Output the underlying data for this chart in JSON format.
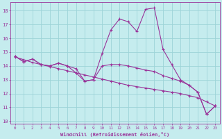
{
  "xlabel": "Windchill (Refroidissement éolien,°C)",
  "background_color": "#c5ecee",
  "grid_color": "#9dd4d8",
  "line_color": "#993399",
  "xlim": [
    -0.5,
    23.5
  ],
  "ylim": [
    9.8,
    18.6
  ],
  "yticks": [
    10,
    11,
    12,
    13,
    14,
    15,
    16,
    17,
    18
  ],
  "xticks": [
    0,
    1,
    2,
    3,
    4,
    5,
    6,
    7,
    8,
    9,
    10,
    11,
    12,
    13,
    14,
    15,
    16,
    17,
    18,
    19,
    20,
    21,
    22,
    23
  ],
  "temp_series": [
    14.7,
    14.3,
    14.5,
    14.1,
    14.0,
    14.2,
    14.0,
    13.8,
    12.9,
    13.0,
    14.9,
    16.6,
    17.4,
    17.2,
    16.5,
    18.1,
    18.2,
    15.2,
    14.1,
    13.0,
    12.6,
    12.1,
    10.5,
    11.1
  ],
  "windchill_series": [
    14.7,
    14.3,
    14.5,
    14.1,
    14.0,
    14.2,
    14.0,
    13.5,
    12.9,
    13.0,
    14.0,
    14.1,
    14.1,
    14.0,
    13.85,
    13.7,
    13.6,
    13.3,
    13.1,
    12.9,
    12.6,
    12.1,
    10.5,
    11.1
  ],
  "trend_series": [
    14.65,
    14.45,
    14.25,
    14.1,
    13.95,
    13.8,
    13.65,
    13.5,
    13.35,
    13.2,
    13.05,
    12.9,
    12.75,
    12.6,
    12.5,
    12.4,
    12.3,
    12.2,
    12.1,
    12.0,
    11.85,
    11.7,
    11.4,
    11.1
  ]
}
